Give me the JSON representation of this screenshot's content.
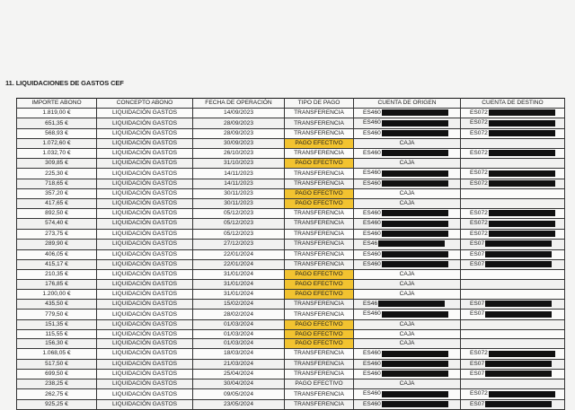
{
  "title": "11. LIQUIDACIONES DE GASTOS CEF",
  "colors": {
    "highlight": "#f2c330",
    "redaction": "#111111"
  },
  "columns": [
    "IMPORTE ABONO",
    "CONCEPTO ABONO",
    "FECHA DE OPERACIÓN",
    "TIPO DE PAGO",
    "CUENTA DE ORIGEN",
    "CUENTA DE DESTINO"
  ],
  "rows": [
    {
      "importe": "1.819,00 €",
      "concepto": "LIQUIDACIÓN GASTOS",
      "fecha": "14/09/2023",
      "tipo": "TRANSFERENCIA",
      "origen": "ES460",
      "destino": "ES072",
      "highlight": false
    },
    {
      "importe": "651,35 €",
      "concepto": "LIQUIDACIÓN GASTOS",
      "fecha": "28/09/2023",
      "tipo": "TRANSFERENCIA",
      "origen": "ES460",
      "destino": "ES072",
      "highlight": false
    },
    {
      "importe": "568,93 €",
      "concepto": "LIQUIDACIÓN GASTOS",
      "fecha": "28/09/2023",
      "tipo": "TRANSFERENCIA",
      "origen": "ES460",
      "destino": "ES072",
      "highlight": false
    },
    {
      "importe": "1.072,60 €",
      "concepto": "LIQUIDACIÓN GASTOS",
      "fecha": "30/09/2023",
      "tipo": "PAGO EFECTIVO",
      "origen": "CAJA",
      "destino": "",
      "highlight": true
    },
    {
      "importe": "1.032,70 €",
      "concepto": "LIQUIDACIÓN GASTOS",
      "fecha": "26/10/2023",
      "tipo": "TRANSFERENCIA",
      "origen": "ES460",
      "destino": "ES072",
      "highlight": false
    },
    {
      "importe": "309,85 €",
      "concepto": "LIQUIDACIÓN GASTOS",
      "fecha": "31/10/2023",
      "tipo": "PAGO EFECTIVO",
      "origen": "CAJA",
      "destino": "",
      "highlight": true
    },
    {
      "importe": "225,30 €",
      "concepto": "LIQUIDACIÓN GASTOS",
      "fecha": "14/11/2023",
      "tipo": "TRANSFERENCIA",
      "origen": "ES460",
      "destino": "ES072",
      "highlight": false
    },
    {
      "importe": "718,65 €",
      "concepto": "LIQUIDACIÓN GASTOS",
      "fecha": "14/11/2023",
      "tipo": "TRANSFERENCIA",
      "origen": "ES460",
      "destino": "ES072",
      "highlight": false
    },
    {
      "importe": "357,20 €",
      "concepto": "LIQUIDACIÓN GASTOS",
      "fecha": "30/11/2023",
      "tipo": "PAGO EFECTIVO",
      "origen": "CAJA",
      "destino": "",
      "highlight": true
    },
    {
      "importe": "417,65 €",
      "concepto": "LIQUIDACIÓN GASTOS",
      "fecha": "30/11/2023",
      "tipo": "PAGO EFECTIVO",
      "origen": "CAJA",
      "destino": "",
      "highlight": true
    },
    {
      "importe": "892,50 €",
      "concepto": "LIQUIDACIÓN GASTOS",
      "fecha": "05/12/2023",
      "tipo": "TRANSFERENCIA",
      "origen": "ES460",
      "destino": "ES072",
      "highlight": false
    },
    {
      "importe": "574,40 €",
      "concepto": "LIQUIDACIÓN GASTOS",
      "fecha": "05/12/2023",
      "tipo": "TRANSFERENCIA",
      "origen": "ES460",
      "destino": "ES072",
      "highlight": false
    },
    {
      "importe": "273,75 €",
      "concepto": "LIQUIDACIÓN GASTOS",
      "fecha": "05/12/2023",
      "tipo": "TRANSFERENCIA",
      "origen": "ES460",
      "destino": "ES072",
      "highlight": false
    },
    {
      "importe": "289,90 €",
      "concepto": "LIQUIDACIÓN GASTOS",
      "fecha": "27/12/2023",
      "tipo": "TRANSFERENCIA",
      "origen": "ES46",
      "destino": "ES07",
      "highlight": false
    },
    {
      "importe": "406,05 €",
      "concepto": "LIQUIDACIÓN GASTOS",
      "fecha": "22/01/2024",
      "tipo": "TRANSFERENCIA",
      "origen": "ES460",
      "destino": "ES07",
      "highlight": false
    },
    {
      "importe": "415,17 €",
      "concepto": "LIQUIDACIÓN GASTOS",
      "fecha": "22/01/2024",
      "tipo": "TRANSFERENCIA",
      "origen": "ES460",
      "destino": "ES07",
      "highlight": false
    },
    {
      "importe": "210,35 €",
      "concepto": "LIQUIDACIÓN GASTOS",
      "fecha": "31/01/2024",
      "tipo": "PAGO EFECTIVO",
      "origen": "CAJA",
      "destino": "",
      "highlight": true
    },
    {
      "importe": "176,85 €",
      "concepto": "LIQUIDACIÓN GASTOS",
      "fecha": "31/01/2024",
      "tipo": "PAGO EFECTIVO",
      "origen": "CAJA",
      "destino": "",
      "highlight": true
    },
    {
      "importe": "1.200,00 €",
      "concepto": "LIQUIDACIÓN GASTOS",
      "fecha": "31/01/2024",
      "tipo": "PAGO EFECTIVO",
      "origen": "CAJA",
      "destino": "",
      "highlight": true
    },
    {
      "importe": "435,50 €",
      "concepto": "LIQUIDACIÓN GASTOS",
      "fecha": "15/02/2024",
      "tipo": "TRANSFERENCIA",
      "origen": "ES46",
      "destino": "ES07",
      "highlight": false
    },
    {
      "importe": "779,50 €",
      "concepto": "LIQUIDACIÓN GASTOS",
      "fecha": "28/02/2024",
      "tipo": "TRANSFERENCIA",
      "origen": "ES460",
      "destino": "ES07",
      "highlight": false
    },
    {
      "importe": "151,35 €",
      "concepto": "LIQUIDACIÓN GASTOS",
      "fecha": "01/03/2024",
      "tipo": "PAGO EFECTIVO",
      "origen": "CAJA",
      "destino": "",
      "highlight": true
    },
    {
      "importe": "115,55 €",
      "concepto": "LIQUIDACIÓN GASTOS",
      "fecha": "01/03/2024",
      "tipo": "PAGO EFECTIVO",
      "origen": "CAJA",
      "destino": "",
      "highlight": true
    },
    {
      "importe": "156,30 €",
      "concepto": "LIQUIDACIÓN GASTOS",
      "fecha": "01/03/2024",
      "tipo": "PAGO EFECTIVO",
      "origen": "CAJA",
      "destino": "",
      "highlight": true
    },
    {
      "importe": "1.068,05 €",
      "concepto": "LIQUIDACIÓN GASTOS",
      "fecha": "18/03/2024",
      "tipo": "TRANSFERENCIA",
      "origen": "ES460",
      "destino": "ES072",
      "highlight": false
    },
    {
      "importe": "517,50 €",
      "concepto": "LIQUIDACIÓN GASTOS",
      "fecha": "21/03/2024",
      "tipo": "TRANSFERENCIA",
      "origen": "ES460",
      "destino": "ES07",
      "highlight": false
    },
    {
      "importe": "699,50 €",
      "concepto": "LIQUIDACIÓN GASTOS",
      "fecha": "25/04/2024",
      "tipo": "TRANSFERENCIA",
      "origen": "ES460",
      "destino": "ES07",
      "highlight": false
    },
    {
      "importe": "238,25 €",
      "concepto": "LIQUIDACIÓN GASTOS",
      "fecha": "30/04/2024",
      "tipo": "PAGO EFECTIVO",
      "origen": "CAJA",
      "destino": "",
      "highlight": false
    },
    {
      "importe": "262,75 €",
      "concepto": "LIQUIDACIÓN GASTOS",
      "fecha": "09/05/2024",
      "tipo": "TRANSFERENCIA",
      "origen": "ES460",
      "destino": "ES072",
      "highlight": false
    },
    {
      "importe": "925,25 €",
      "concepto": "LIQUIDACIÓN GASTOS",
      "fecha": "23/05/2024",
      "tipo": "TRANSFERENCIA",
      "origen": "ES460",
      "destino": "ES07",
      "highlight": false
    }
  ]
}
